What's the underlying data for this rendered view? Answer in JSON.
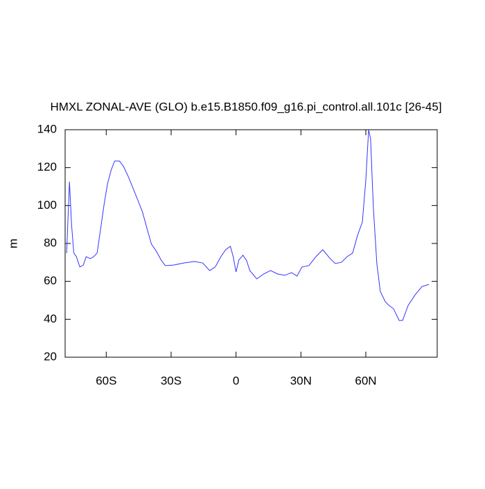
{
  "chart_data": {
    "type": "line",
    "title": "HMXL ZONAL-AVE (GLO) b.e15.B1850.f09_g16.pi_control.all.101c [26-45]",
    "y_label": "m",
    "x": [
      -78.3,
      -77,
      -76,
      -75,
      -73.8,
      -72.2,
      -70.6,
      -69.3,
      -67.4,
      -65.8,
      -64.2,
      -62.6,
      -61,
      -59.4,
      -57.7,
      -56.1,
      -53.9,
      -52,
      -49.7,
      -46.5,
      -43.3,
      -41.1,
      -39.1,
      -36.9,
      -34.6,
      -32.7,
      -28.9,
      -24.1,
      -19.2,
      -15.4,
      -12.2,
      -9.6,
      -7,
      -4.8,
      -2.6,
      -1.3,
      0,
      1.3,
      3.2,
      4.8,
      6.4,
      9.6,
      12.8,
      16,
      19.2,
      22.5,
      25.7,
      28.2,
      30.5,
      33.7,
      36.9,
      40.1,
      43.3,
      45.9,
      48.8,
      51.3,
      53.9,
      56.1,
      58.4,
      60,
      61.3,
      62.2,
      63.5,
      65.1,
      66.7,
      69,
      70.6,
      72.8,
      75.4,
      77,
      79.6,
      82.8,
      86,
      89.2
    ],
    "series": [
      {
        "color": "#3333ff",
        "values": [
          74.9,
          112.6,
          89.5,
          75,
          73,
          67.6,
          68.6,
          73,
          72,
          73,
          75,
          87.7,
          100.5,
          111.5,
          118.8,
          123.5,
          123.5,
          120.6,
          115,
          106,
          96.8,
          87.7,
          79.6,
          76,
          71.2,
          68.3,
          68.6,
          69.7,
          70.5,
          69.7,
          65.7,
          67.6,
          73,
          76.7,
          78.5,
          73,
          65,
          71.2,
          73.8,
          71.2,
          65.7,
          61.3,
          63.9,
          65.7,
          63.9,
          63.2,
          64.6,
          62.8,
          67.6,
          68.3,
          73,
          76.7,
          72.3,
          69.4,
          70.1,
          73,
          74.9,
          84,
          91.3,
          113.3,
          140,
          135.2,
          98.7,
          69.4,
          54.7,
          49.3,
          47.4,
          45.6,
          39.4,
          39.4,
          47.4,
          52.9,
          57.3,
          58.4
        ]
      }
    ],
    "xlim": [
      -79,
      93
    ],
    "xticks": [
      {
        "value": -60,
        "label": "60S"
      },
      {
        "value": -30,
        "label": "30S"
      },
      0,
      {
        "value": 30,
        "label": "30N"
      },
      {
        "value": 60,
        "label": "60N"
      }
    ],
    "ylim": [
      20,
      140
    ],
    "yticks": [
      20,
      40,
      60,
      80,
      100,
      120,
      140
    ]
  }
}
